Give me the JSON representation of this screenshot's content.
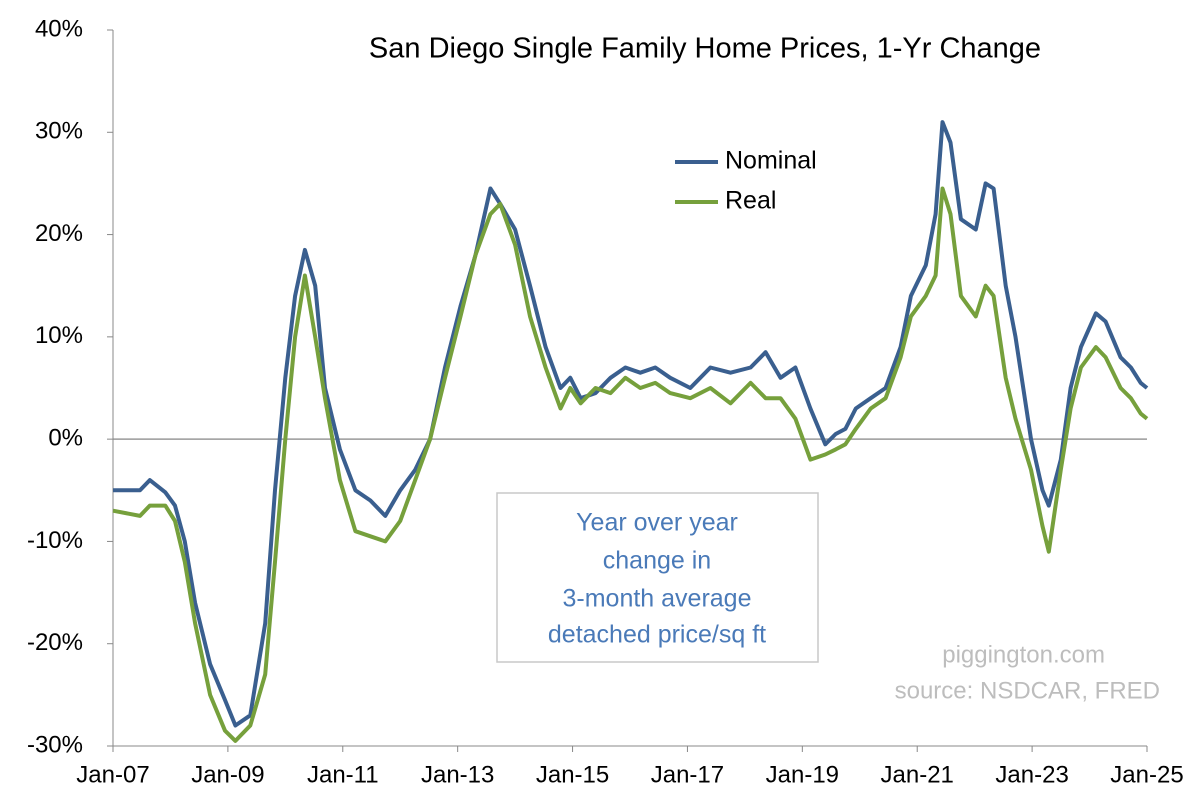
{
  "chart_data": {
    "type": "line",
    "title": "San Diego Single Family Home Prices, 1-Yr Change",
    "annotation": [
      "Year over year",
      "change in",
      "3-month average",
      "detached price/sq ft"
    ],
    "watermark": [
      "piggington.com",
      "source: NSDCAR, FRED"
    ],
    "x": [
      2007.0,
      2007.47,
      2007.64,
      2007.91,
      2008.08,
      2008.25,
      2008.43,
      2008.69,
      2008.95,
      2009.13,
      2009.39,
      2009.65,
      2009.82,
      2010.0,
      2010.17,
      2010.34,
      2010.52,
      2010.69,
      2010.95,
      2011.22,
      2011.48,
      2011.74,
      2012.0,
      2012.26,
      2012.52,
      2012.78,
      2013.05,
      2013.31,
      2013.57,
      2013.74,
      2014.0,
      2014.26,
      2014.53,
      2014.79,
      2014.96,
      2015.14,
      2015.4,
      2015.66,
      2015.92,
      2016.18,
      2016.44,
      2016.7,
      2017.05,
      2017.4,
      2017.75,
      2018.1,
      2018.36,
      2018.62,
      2018.88,
      2019.14,
      2019.4,
      2019.58,
      2019.75,
      2019.93,
      2020.19,
      2020.45,
      2020.71,
      2020.89,
      2021.15,
      2021.32,
      2021.44,
      2021.58,
      2021.76,
      2022.02,
      2022.19,
      2022.33,
      2022.54,
      2022.71,
      2022.98,
      2023.18,
      2023.29,
      2023.5,
      2023.67,
      2023.85,
      2024.11,
      2024.28,
      2024.54,
      2024.72,
      2024.89,
      2025.0
    ],
    "series": [
      {
        "name": "Nominal",
        "color": "#3a5f8f",
        "values": [
          -5,
          -5,
          -4,
          -5.2,
          -6.5,
          -10,
          -16,
          -22,
          -25.5,
          -28,
          -27,
          -18,
          -5,
          6,
          14,
          18.5,
          15,
          5,
          -1,
          -5,
          -6,
          -7.5,
          -5,
          -3,
          0,
          7,
          13,
          18,
          24.5,
          23,
          20.5,
          15,
          9,
          5,
          6,
          4,
          4.5,
          6,
          7,
          6.5,
          7,
          6,
          5,
          7,
          6.5,
          7,
          8.5,
          6,
          7,
          3,
          -0.5,
          0.5,
          1,
          3,
          4,
          5,
          9,
          14,
          17,
          22,
          31,
          29,
          21.5,
          20.5,
          25,
          24.5,
          15,
          10,
          0,
          -5,
          -6.5,
          -2,
          5,
          9,
          12.3,
          11.5,
          8,
          7,
          5.5,
          5
        ]
      },
      {
        "name": "Real",
        "color": "#76a03c",
        "values": [
          -7,
          -7.5,
          -6.5,
          -6.5,
          -8,
          -12,
          -18,
          -25,
          -28.5,
          -29.5,
          -28,
          -23,
          -12,
          0,
          10,
          16,
          10,
          4,
          -4,
          -9,
          -9.5,
          -10,
          -8,
          -4,
          0,
          6,
          12,
          18,
          22,
          23,
          19,
          12,
          7,
          3,
          5,
          3.5,
          5,
          4.5,
          6,
          5,
          5.5,
          4.5,
          4,
          5,
          3.5,
          5.5,
          4,
          4,
          2,
          -2,
          -1.5,
          -1,
          -0.5,
          1,
          3,
          4,
          8,
          12,
          14,
          16,
          24.5,
          22,
          14,
          12,
          15,
          14,
          6,
          2,
          -3,
          -8.5,
          -11,
          -3,
          3,
          7,
          9,
          8,
          5,
          4,
          2.5,
          2
        ]
      }
    ],
    "xlim": [
      2007,
      2025
    ],
    "xticks": [
      {
        "value": 2007,
        "label": "Jan-07"
      },
      {
        "value": 2009,
        "label": "Jan-09"
      },
      {
        "value": 2011,
        "label": "Jan-11"
      },
      {
        "value": 2013,
        "label": "Jan-13"
      },
      {
        "value": 2015,
        "label": "Jan-15"
      },
      {
        "value": 2017,
        "label": "Jan-17"
      },
      {
        "value": 2019,
        "label": "Jan-19"
      },
      {
        "value": 2021,
        "label": "Jan-21"
      },
      {
        "value": 2023,
        "label": "Jan-23"
      },
      {
        "value": 2025,
        "label": "Jan-25"
      }
    ],
    "ylim": [
      -30,
      40
    ],
    "yticks": [
      {
        "value": -30,
        "label": "-30%"
      },
      {
        "value": -20,
        "label": "-20%"
      },
      {
        "value": -10,
        "label": "-10%"
      },
      {
        "value": 0,
        "label": "0%"
      },
      {
        "value": 10,
        "label": "10%"
      },
      {
        "value": 20,
        "label": "20%"
      },
      {
        "value": 30,
        "label": "30%"
      },
      {
        "value": 40,
        "label": "40%"
      }
    ],
    "zero_line": true
  }
}
